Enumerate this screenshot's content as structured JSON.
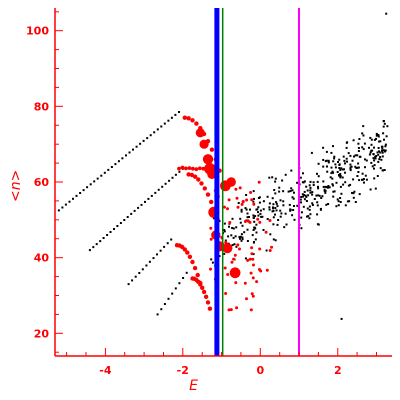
{
  "chart_data": {
    "type": "scatter",
    "title": "",
    "xlabel": "E",
    "ylabel": "<n>",
    "xlim": [
      -5.3,
      3.4
    ],
    "ylim": [
      14,
      106
    ],
    "x_ticks": [
      -4,
      -2,
      0,
      2
    ],
    "x_tick_labels": [
      "-4",
      "-2",
      "0",
      "2"
    ],
    "y_ticks": [
      20,
      40,
      60,
      80,
      100
    ],
    "y_tick_labels": [
      "20",
      "40",
      "60",
      "80",
      "100"
    ],
    "grid": false,
    "legend": "none",
    "colors": {
      "axes": "#ff0000",
      "scatter_black": "#000000",
      "scatter_red": "#ff0000",
      "line_blue": "#0000ff",
      "line_green": "#008000",
      "line_magenta": "#ff00ff"
    },
    "vlines": [
      {
        "x": -1.12,
        "color": "#0000ff",
        "width": "thick"
      },
      {
        "x": -0.97,
        "color": "#008000",
        "width": "thin"
      },
      {
        "x": 1.0,
        "color": "#ff00ff",
        "width": "medium"
      }
    ],
    "band_bottoms": [
      {
        "start": [
          -5.2,
          52.5
        ],
        "peak": [
          -2.1,
          78.5
        ]
      },
      {
        "start": [
          -4.4,
          42.0
        ],
        "peak": [
          -2.0,
          63.5
        ]
      },
      {
        "start": [
          -3.4,
          33.0
        ],
        "peak": [
          -2.3,
          44.8
        ]
      },
      {
        "start": [
          -2.65,
          25.0
        ],
        "peak": [
          -1.9,
          36.0
        ]
      }
    ],
    "red_big_points": [
      [
        -1.55,
        73.0
      ],
      [
        -1.45,
        70.0
      ],
      [
        -1.35,
        66.0
      ],
      [
        -1.3,
        63.5
      ],
      [
        -1.25,
        62.0
      ],
      [
        -0.9,
        59.0
      ],
      [
        -0.75,
        60.0
      ],
      [
        -1.2,
        52.0
      ],
      [
        -1.15,
        46.0
      ],
      [
        -0.85,
        42.5
      ],
      [
        -0.65,
        36.0
      ],
      [
        -1.05,
        43.0
      ]
    ],
    "black_cloud": {
      "x_range": [
        -1.3,
        3.3
      ],
      "y_range": [
        24,
        105
      ],
      "trend": "increasing"
    }
  }
}
